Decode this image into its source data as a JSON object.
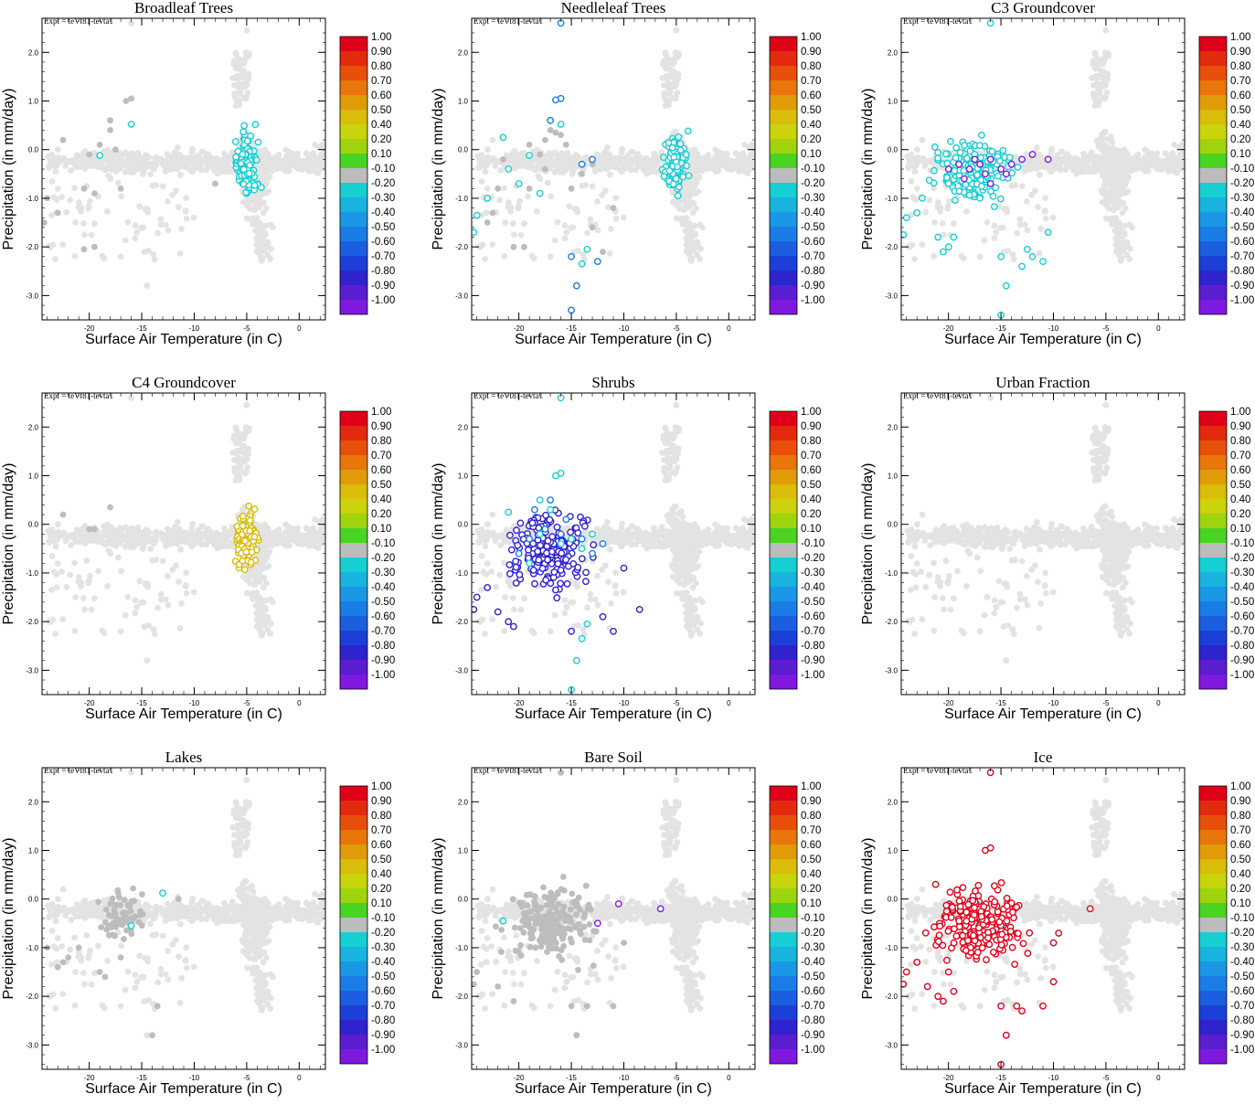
{
  "experiment_label": "Expt = teVt81-tevta1",
  "colors": {
    "background_points": "#e3e3e3",
    "neutral_points": "#bdbdbd"
  },
  "colorbar": {
    "labels": [
      "1.00",
      "0.90",
      "0.80",
      "0.70",
      "0.60",
      "0.50",
      "0.40",
      "0.20",
      "0.10",
      "-0.10",
      "-0.20",
      "-0.30",
      "-0.40",
      "-0.50",
      "-0.60",
      "-0.70",
      "-0.80",
      "-0.90",
      "-1.00"
    ],
    "colors": [
      "#e0001a",
      "#e32a0e",
      "#e84f0a",
      "#e8760a",
      "#e09b08",
      "#d9bd08",
      "#c9d40a",
      "#9ed40e",
      "#49d424",
      "#bcbcbc",
      "#16cfd2",
      "#18b3df",
      "#1a98e6",
      "#1a7de6",
      "#1c5ee0",
      "#1c3fd8",
      "#2f22cf",
      "#5a1dcf",
      "#7f19e0"
    ]
  },
  "chart_data": [
    {
      "type": "scatter",
      "title": "Broadleaf Trees",
      "xlabel": "Surface Air Temperature (in C)",
      "ylabel": "Precipitation (in mm/day)",
      "xlim": [
        -24.5,
        2.5
      ],
      "ylim": [
        -3.5,
        2.7
      ],
      "xticks": [
        -20,
        -15,
        -10,
        -5,
        0
      ],
      "xtick_labels": [
        "-20",
        "-15",
        "-10",
        "-5",
        "0"
      ],
      "yticks": [
        2,
        1,
        0,
        -1,
        -2,
        -3
      ],
      "ytick_labels": [
        "2.0",
        "1.0",
        "0.0",
        "-1.0",
        "-2.0",
        "-3.0"
      ],
      "highlight_color": "#16cfd2",
      "highlight_cluster": {
        "x_center": -5.0,
        "x_spread": 1.0,
        "y_center": -0.3,
        "y_spread": 0.55,
        "count": 120
      },
      "neutral_points": [
        [
          -22.5,
          0.2
        ],
        [
          -20,
          -0.1
        ],
        [
          -19,
          0.1
        ],
        [
          -18,
          0.4
        ],
        [
          -18,
          0.6
        ],
        [
          -17.5,
          0.0
        ],
        [
          -16,
          1.05
        ],
        [
          -16.5,
          1.0
        ],
        [
          -19.5,
          -0.9
        ],
        [
          -20.5,
          -0.8
        ],
        [
          -17,
          -0.8
        ],
        [
          -24,
          -1.0
        ],
        [
          -24.3,
          -1.5
        ],
        [
          -20.5,
          -2.05
        ],
        [
          -19.5,
          -2.0
        ],
        [
          -23,
          -1.3
        ],
        [
          -8,
          -0.7
        ]
      ],
      "cyan_points": [
        [
          -16,
          0.52
        ],
        [
          -19,
          -0.12
        ]
      ]
    },
    {
      "type": "scatter",
      "title": "Needleleaf Trees",
      "xlabel": "Surface Air Temperature (in C)",
      "ylabel": "Precipitation (in mm/day)",
      "xlim": [
        -24.5,
        2.5
      ],
      "ylim": [
        -3.5,
        2.7
      ],
      "xticks": [
        -20,
        -15,
        -10,
        -5,
        0
      ],
      "xtick_labels": [
        "-20",
        "-15",
        "-10",
        "-5",
        "0"
      ],
      "yticks": [
        2,
        1,
        0,
        -1,
        -2,
        -3
      ],
      "ytick_labels": [
        "2.0",
        "1.0",
        "0.0",
        "-1.0",
        "-2.0",
        "-3.0"
      ],
      "highlight_color": "#16cfd2",
      "highlight_cluster": {
        "x_center": -5.0,
        "x_spread": 1.0,
        "y_center": -0.3,
        "y_spread": 0.55,
        "count": 120
      },
      "neutral_points": [
        [
          -17,
          0.4
        ],
        [
          -16.5,
          0.35
        ],
        [
          -16,
          0.3
        ],
        [
          -15.5,
          0.1
        ],
        [
          -17.5,
          0.2
        ],
        [
          -18,
          -0.1
        ],
        [
          -19,
          0.1
        ],
        [
          -14,
          -0.5
        ],
        [
          -15,
          -0.8
        ],
        [
          -13,
          -0.3
        ],
        [
          -21.5,
          -0.2
        ],
        [
          -22,
          -0.8
        ],
        [
          -22.5,
          -1.3
        ],
        [
          -23,
          -1.5
        ],
        [
          -20.5,
          -2.0
        ],
        [
          -19.5,
          -2.0
        ],
        [
          -13,
          -1.6
        ],
        [
          -12,
          -2.1
        ],
        [
          -15,
          -2.2
        ],
        [
          -11,
          -1.2
        ],
        [
          -17.5,
          -0.4
        ],
        [
          -19,
          -0.8
        ]
      ],
      "cyan_points": [
        [
          -16,
          0.52
        ],
        [
          -19,
          -0.12
        ],
        [
          -21,
          -0.4
        ],
        [
          -23,
          -1.0
        ],
        [
          -24,
          -1.35
        ],
        [
          -24.3,
          -1.7
        ],
        [
          -13.5,
          -2.05
        ],
        [
          -14,
          -2.35
        ],
        [
          -18,
          -0.9
        ],
        [
          -20,
          -0.7
        ],
        [
          -21.5,
          0.25
        ]
      ],
      "blue_points": [
        [
          -16,
          1.05
        ],
        [
          -16.5,
          1.02
        ],
        [
          -17,
          0.6
        ],
        [
          -15,
          -2.2
        ],
        [
          -12.5,
          -2.3
        ],
        [
          -14.5,
          -2.8
        ],
        [
          -15,
          -3.3
        ],
        [
          -16,
          2.6
        ],
        [
          -14,
          -0.3
        ],
        [
          -13,
          -0.2
        ]
      ]
    },
    {
      "type": "scatter",
      "title": "C3 Groundcover",
      "xlabel": "Surface Air Temperature (in C)",
      "ylabel": "Precipitation (in mm/day)",
      "xlim": [
        -24.5,
        2.5
      ],
      "ylim": [
        -3.5,
        2.7
      ],
      "xticks": [
        -20,
        -15,
        -10,
        -5,
        0
      ],
      "xtick_labels": [
        "-20",
        "-15",
        "-10",
        "-5",
        "0"
      ],
      "yticks": [
        2,
        1,
        0,
        -1,
        -2,
        -3
      ],
      "ytick_labels": [
        "2.0",
        "1.0",
        "0.0",
        "-1.0",
        "-2.0",
        "-3.0"
      ],
      "highlight_color": "#16cfd2",
      "highlight_cluster": {
        "x_center": -17.5,
        "x_spread": 3.3,
        "y_center": -0.45,
        "y_spread": 0.55,
        "count": 180
      },
      "cyan_points": [
        [
          -23,
          -1.3
        ],
        [
          -24,
          -1.4
        ],
        [
          -24.3,
          -1.75
        ],
        [
          -22.5,
          -1.0
        ],
        [
          -21,
          -1.8
        ],
        [
          -20.5,
          -2.1
        ],
        [
          -20,
          -2.0
        ],
        [
          -19.5,
          -1.8
        ],
        [
          -15,
          -2.2
        ],
        [
          -14.5,
          -2.8
        ],
        [
          -13,
          -2.4
        ],
        [
          -12,
          -2.2
        ],
        [
          -10.5,
          -1.7
        ],
        [
          -15,
          -3.4
        ],
        [
          -16,
          2.6
        ],
        [
          -11,
          -2.3
        ],
        [
          -12.5,
          -2.05
        ]
      ],
      "purple_points": [
        [
          -18,
          -0.4
        ],
        [
          -17,
          -0.3
        ],
        [
          -16.5,
          -0.5
        ],
        [
          -19,
          -0.3
        ],
        [
          -17.5,
          -0.2
        ],
        [
          -16,
          -0.2
        ],
        [
          -15,
          -0.4
        ],
        [
          -14,
          -0.3
        ],
        [
          -13,
          -0.2
        ],
        [
          -12,
          -0.1
        ],
        [
          -10.5,
          -0.2
        ],
        [
          -20,
          -0.4
        ],
        [
          -18.5,
          -0.6
        ],
        [
          -16,
          -0.7
        ],
        [
          -14.5,
          -0.5
        ]
      ]
    },
    {
      "type": "scatter",
      "title": "C4 Groundcover",
      "xlabel": "Surface Air Temperature (in C)",
      "ylabel": "Precipitation (in mm/day)",
      "xlim": [
        -24.5,
        2.5
      ],
      "ylim": [
        -3.5,
        2.7
      ],
      "xticks": [
        -20,
        -15,
        -10,
        -5,
        0
      ],
      "xtick_labels": [
        "-20",
        "-15",
        "-10",
        "-5",
        "0"
      ],
      "yticks": [
        2,
        1,
        0,
        -1,
        -2,
        -3
      ],
      "ytick_labels": [
        "2.0",
        "1.0",
        "0.0",
        "-1.0",
        "-2.0",
        "-3.0"
      ],
      "highlight_color": "#d9bd08",
      "highlight_cluster": {
        "x_center": -5.0,
        "x_spread": 1.0,
        "y_center": -0.3,
        "y_spread": 0.55,
        "count": 130
      },
      "neutral_points": [
        [
          -22.5,
          0.2
        ],
        [
          -20,
          -0.1
        ],
        [
          -19.5,
          -0.1
        ],
        [
          -18,
          0.35
        ]
      ]
    },
    {
      "type": "scatter",
      "title": "Shrubs",
      "xlabel": "Surface Air Temperature (in C)",
      "ylabel": "Precipitation (in mm/day)",
      "xlim": [
        -24.5,
        2.5
      ],
      "ylim": [
        -3.5,
        2.7
      ],
      "xticks": [
        -20,
        -15,
        -10,
        -5,
        0
      ],
      "xtick_labels": [
        "-20",
        "-15",
        "-10",
        "-5",
        "0"
      ],
      "yticks": [
        2,
        1,
        0,
        -1,
        -2,
        -3
      ],
      "ytick_labels": [
        "2.0",
        "1.0",
        "0.0",
        "-1.0",
        "-2.0",
        "-3.0"
      ],
      "highlight_color": "#2f22cf",
      "highlight_cluster": {
        "x_center": -17.0,
        "x_spread": 3.8,
        "y_center": -0.55,
        "y_spread": 0.7,
        "count": 190
      },
      "blue_points": [
        [
          -17,
          0.5
        ],
        [
          -18.5,
          0.3
        ],
        [
          -15.5,
          0.1
        ],
        [
          -14,
          -0.3
        ],
        [
          -13,
          -0.6
        ],
        [
          -12,
          -0.4
        ],
        [
          -16,
          -0.2
        ],
        [
          -17.5,
          -0.1
        ],
        [
          -19,
          -0.3
        ],
        [
          -20,
          -0.6
        ]
      ],
      "cyan_points": [
        [
          -16,
          1.05
        ],
        [
          -16.5,
          1.0
        ],
        [
          -18,
          0.5
        ],
        [
          -17,
          0.3
        ],
        [
          -15,
          -0.3
        ],
        [
          -14,
          -0.5
        ],
        [
          -16,
          -0.4
        ],
        [
          -18,
          -0.2
        ],
        [
          -19,
          -0.8
        ],
        [
          -14,
          -2.35
        ],
        [
          -13.5,
          -2.05
        ],
        [
          -14.5,
          -2.8
        ],
        [
          -15,
          -3.4
        ],
        [
          -16,
          2.6
        ],
        [
          -21,
          0.25
        ],
        [
          -13,
          -0.2
        ]
      ],
      "extra_purple": [
        [
          -24.3,
          -1.75
        ],
        [
          -24,
          -1.5
        ],
        [
          -23,
          -1.3
        ],
        [
          -22,
          -1.8
        ],
        [
          -21,
          -2.0
        ],
        [
          -20.5,
          -2.1
        ],
        [
          -15,
          -2.2
        ],
        [
          -11,
          -2.2
        ],
        [
          -10,
          -0.9
        ],
        [
          -8.5,
          -1.75
        ],
        [
          -12,
          -1.9
        ]
      ]
    },
    {
      "type": "scatter",
      "title": "Urban Fraction",
      "xlabel": "Surface Air Temperature (in C)",
      "ylabel": "Precipitation (in mm/day)",
      "xlim": [
        -24.5,
        2.5
      ],
      "ylim": [
        -3.5,
        2.7
      ],
      "xticks": [
        -20,
        -15,
        -10,
        -5,
        0
      ],
      "xtick_labels": [
        "-20",
        "-15",
        "-10",
        "-5",
        "0"
      ],
      "yticks": [
        2,
        1,
        0,
        -1,
        -2,
        -3
      ],
      "ytick_labels": [
        "2.0",
        "1.0",
        "0.0",
        "-1.0",
        "-2.0",
        "-3.0"
      ]
    },
    {
      "type": "scatter",
      "title": "Lakes",
      "xlabel": "Surface Air Temperature (in C)",
      "ylabel": "Precipitation (in mm/day)",
      "xlim": [
        -24.5,
        2.5
      ],
      "ylim": [
        -3.5,
        2.7
      ],
      "xticks": [
        -20,
        -15,
        -10,
        -5,
        0
      ],
      "xtick_labels": [
        "-20",
        "-15",
        "-10",
        "-5",
        "0"
      ],
      "yticks": [
        2,
        1,
        0,
        -1,
        -2,
        -3
      ],
      "ytick_labels": [
        "2.0",
        "1.0",
        "0.0",
        "-1.0",
        "-2.0",
        "-3.0"
      ],
      "highlight_color": "#bdbdbd",
      "highlight_cluster": {
        "x_center": -17.0,
        "x_spread": 1.8,
        "y_center": -0.35,
        "y_spread": 0.45,
        "count": 60
      },
      "cyan_points": [
        [
          -13,
          0.12
        ],
        [
          -16,
          -0.55
        ]
      ],
      "neutral_points": [
        [
          -11.5,
          0.0
        ],
        [
          -22.5,
          -1.3
        ],
        [
          -23,
          -1.4
        ],
        [
          -22,
          -1.2
        ],
        [
          -21,
          -1.0
        ],
        [
          -19,
          -1.5
        ],
        [
          -18.5,
          -1.6
        ],
        [
          -17,
          -1.2
        ],
        [
          -13.5,
          -2.2
        ],
        [
          -14,
          -2.8
        ],
        [
          -24,
          -1.0
        ]
      ]
    },
    {
      "type": "scatter",
      "title": "Bare Soil",
      "xlabel": "Surface Air Temperature (in C)",
      "ylabel": "Precipitation (in mm/day)",
      "xlim": [
        -24.5,
        2.5
      ],
      "ylim": [
        -3.5,
        2.7
      ],
      "xticks": [
        -20,
        -15,
        -10,
        -5,
        0
      ],
      "xtick_labels": [
        "-20",
        "-15",
        "-10",
        "-5",
        "0"
      ],
      "yticks": [
        2,
        1,
        0,
        -1,
        -2,
        -3
      ],
      "ytick_labels": [
        "2.0",
        "1.0",
        "0.0",
        "-1.0",
        "-2.0",
        "-3.0"
      ],
      "highlight_color": "#bdbdbd",
      "highlight_cluster": {
        "x_center": -17.0,
        "x_spread": 3.5,
        "y_center": -0.5,
        "y_spread": 0.65,
        "count": 200
      },
      "purple_points": [
        [
          -10.5,
          -0.1
        ],
        [
          -6.5,
          -0.2
        ],
        [
          -12.5,
          -0.5
        ]
      ],
      "cyan_points": [
        [
          -21.5,
          -0.45
        ]
      ],
      "neutral_points": [
        [
          -24.3,
          -1.75
        ],
        [
          -24,
          -1.5
        ],
        [
          -22,
          -1.8
        ],
        [
          -20.5,
          -2.1
        ],
        [
          -15,
          -2.2
        ],
        [
          -14.5,
          -2.8
        ],
        [
          -13.5,
          -2.2
        ],
        [
          -11,
          -2.2
        ],
        [
          -10,
          -0.9
        ],
        [
          -16,
          2.6
        ]
      ]
    },
    {
      "type": "scatter",
      "title": "Ice",
      "xlabel": "Surface Air Temperature (in C)",
      "ylabel": "Precipitation (in mm/day)",
      "xlim": [
        -24.5,
        2.5
      ],
      "ylim": [
        -3.5,
        2.7
      ],
      "xticks": [
        -20,
        -15,
        -10,
        -5,
        0
      ],
      "xtick_labels": [
        "-20",
        "-15",
        "-10",
        "-5",
        "0"
      ],
      "yticks": [
        2,
        1,
        0,
        -1,
        -2,
        -3
      ],
      "ytick_labels": [
        "2.0",
        "1.0",
        "0.0",
        "-1.0",
        "-2.0",
        "-3.0"
      ],
      "highlight_color": "#e0001a",
      "highlight_cluster": {
        "x_center": -17.0,
        "x_spread": 3.8,
        "y_center": -0.5,
        "y_spread": 0.65,
        "count": 220
      },
      "red_points": [
        [
          -16,
          2.6
        ],
        [
          -16,
          1.05
        ],
        [
          -16.5,
          1.0
        ],
        [
          -24.3,
          -1.75
        ],
        [
          -24,
          -1.5
        ],
        [
          -23,
          -1.3
        ],
        [
          -22,
          -1.8
        ],
        [
          -21,
          -2.0
        ],
        [
          -20.5,
          -2.1
        ],
        [
          -15,
          -2.2
        ],
        [
          -14.5,
          -2.8
        ],
        [
          -15,
          -3.4
        ],
        [
          -13.5,
          -2.2
        ],
        [
          -13,
          -2.3
        ],
        [
          -11,
          -2.2
        ],
        [
          -10,
          -1.7
        ],
        [
          -10,
          -0.9
        ],
        [
          -6.5,
          -0.2
        ],
        [
          -9.5,
          -0.7
        ],
        [
          -20,
          -1.5
        ],
        [
          -19.5,
          -1.9
        ]
      ]
    }
  ]
}
